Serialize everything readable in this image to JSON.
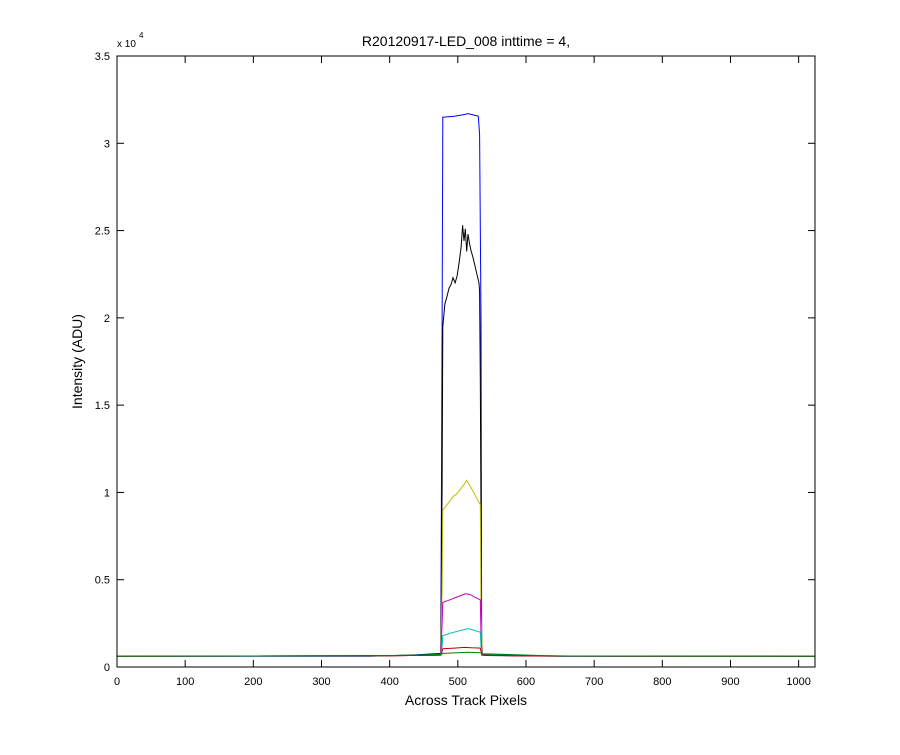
{
  "chart_data": {
    "type": "line",
    "title": "R20120917-LED_008 inttime = 4,",
    "xlabel": "Across Track Pixels",
    "ylabel": "Intensity (ADU)",
    "y_exponent_label": {
      "base": "x 10",
      "exponent": "4"
    },
    "xlim": [
      0,
      1024
    ],
    "ylim": [
      0,
      35000
    ],
    "xticks": [
      0,
      100,
      200,
      300,
      400,
      500,
      600,
      700,
      800,
      900,
      1000
    ],
    "xtick_labels": [
      "0",
      "100",
      "200",
      "300",
      "400",
      "500",
      "600",
      "700",
      "800",
      "900",
      "1000"
    ],
    "yticks": [
      0,
      5000,
      10000,
      15000,
      20000,
      25000,
      30000,
      35000
    ],
    "ytick_labels": [
      "0",
      "0.5",
      "1",
      "1.5",
      "2",
      "2.5",
      "3",
      "3.5"
    ],
    "grid": false,
    "legend": "none",
    "series": [
      {
        "color": "#0000ff",
        "x": [
          0,
          370,
          400,
          440,
          475,
          477,
          478,
          480,
          495,
          510,
          515,
          520,
          530,
          532,
          534,
          535,
          537,
          560,
          600,
          650,
          1024
        ],
        "y": [
          620,
          620,
          650,
          700,
          780,
          19500,
          31500,
          31500,
          31550,
          31650,
          31700,
          31650,
          31550,
          30500,
          20000,
          800,
          750,
          700,
          650,
          620,
          620
        ]
      },
      {
        "color": "#000000",
        "x": [
          0,
          400,
          475,
          477,
          478,
          481,
          484,
          487,
          490,
          493,
          496,
          499,
          502,
          505,
          507,
          509,
          511,
          513,
          515,
          517,
          519,
          522,
          525,
          528,
          531,
          532,
          533,
          535,
          540,
          600,
          1024
        ],
        "y": [
          620,
          640,
          700,
          10400,
          19500,
          20800,
          21200,
          21700,
          21900,
          22300,
          22000,
          22400,
          23200,
          24100,
          25300,
          24400,
          25100,
          23800,
          24800,
          24300,
          23900,
          23500,
          23000,
          22500,
          22000,
          21500,
          16600,
          700,
          660,
          630,
          620
        ]
      },
      {
        "color": "#bfbf00",
        "x": [
          0,
          400,
          475,
          477,
          478,
          482,
          486,
          490,
          494,
          498,
          502,
          506,
          510,
          513,
          516,
          519,
          522,
          526,
          530,
          533,
          534,
          536,
          600,
          1024
        ],
        "y": [
          620,
          640,
          680,
          4500,
          9000,
          9200,
          9400,
          9600,
          9800,
          9900,
          10100,
          10300,
          10500,
          10700,
          10500,
          10300,
          10100,
          9800,
          9500,
          9300,
          3000,
          680,
          630,
          620
        ]
      },
      {
        "color": "#bf00bf",
        "x": [
          0,
          400,
          475,
          477,
          478,
          485,
          495,
          505,
          512,
          518,
          525,
          530,
          533,
          534,
          536,
          600,
          1024
        ],
        "y": [
          620,
          640,
          680,
          2500,
          3700,
          3800,
          3950,
          4100,
          4200,
          4150,
          4000,
          3900,
          3850,
          1800,
          680,
          630,
          620
        ]
      },
      {
        "color": "#00bfbf",
        "x": [
          0,
          380,
          420,
          475,
          477,
          478,
          490,
          500,
          510,
          515,
          520,
          528,
          533,
          534,
          536,
          580,
          650,
          1024
        ],
        "y": [
          620,
          640,
          670,
          700,
          1200,
          1800,
          1950,
          2050,
          2150,
          2200,
          2150,
          2050,
          2000,
          1200,
          700,
          660,
          630,
          620
        ]
      },
      {
        "color": "#bf0000",
        "x": [
          0,
          400,
          475,
          477,
          478,
          495,
          510,
          520,
          533,
          534,
          536,
          600,
          1024
        ],
        "y": [
          620,
          640,
          680,
          900,
          1050,
          1080,
          1120,
          1100,
          1080,
          900,
          680,
          630,
          620
        ]
      },
      {
        "color": "#008000",
        "x": [
          0,
          380,
          430,
          475,
          478,
          500,
          515,
          533,
          536,
          570,
          620,
          660,
          1024
        ],
        "y": [
          620,
          640,
          680,
          720,
          780,
          820,
          840,
          820,
          760,
          720,
          660,
          630,
          620
        ]
      }
    ]
  }
}
